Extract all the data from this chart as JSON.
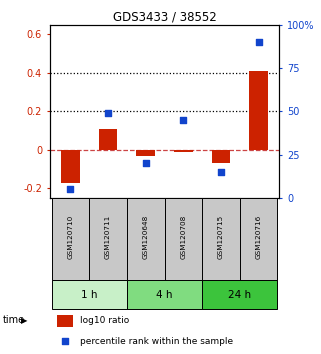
{
  "title": "GDS3433 / 38552",
  "samples": [
    "GSM120710",
    "GSM120711",
    "GSM120648",
    "GSM120708",
    "GSM120715",
    "GSM120716"
  ],
  "log10_ratio": [
    -0.175,
    0.11,
    -0.03,
    -0.01,
    -0.07,
    0.41
  ],
  "percentile_rank": [
    5,
    49,
    20,
    45,
    15,
    90
  ],
  "time_groups": [
    {
      "label": "1 h",
      "start": 0,
      "end": 2,
      "color": "#c8f0c8"
    },
    {
      "label": "4 h",
      "start": 2,
      "end": 4,
      "color": "#80dc80"
    },
    {
      "label": "24 h",
      "start": 4,
      "end": 6,
      "color": "#3cc43c"
    }
  ],
  "bar_color": "#cc2200",
  "dot_color": "#1144cc",
  "ylim_left": [
    -0.25,
    0.65
  ],
  "ylim_right": [
    0,
    100
  ],
  "yticks_left": [
    -0.2,
    0.0,
    0.2,
    0.4,
    0.6
  ],
  "yticks_right": [
    0,
    25,
    50,
    75,
    100
  ],
  "ytick_labels_left": [
    "-0.2",
    "0",
    "0.2",
    "0.4",
    "0.6"
  ],
  "ytick_labels_right": [
    "0",
    "25",
    "50",
    "75",
    "100%"
  ],
  "hlines": [
    0.2,
    0.4
  ],
  "bar_width": 0.5,
  "dot_size": 25,
  "sample_box_color": "#c8c8c8"
}
